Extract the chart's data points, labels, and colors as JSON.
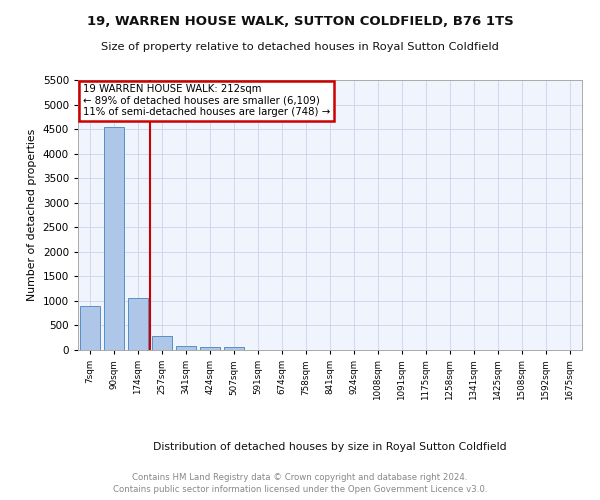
{
  "title1": "19, WARREN HOUSE WALK, SUTTON COLDFIELD, B76 1TS",
  "title2": "Size of property relative to detached houses in Royal Sutton Coldfield",
  "xlabel": "Distribution of detached houses by size in Royal Sutton Coldfield",
  "ylabel": "Number of detached properties",
  "annotation_line1": "19 WARREN HOUSE WALK: 212sqm",
  "annotation_line2": "← 89% of detached houses are smaller (6,109)",
  "annotation_line3": "11% of semi-detached houses are larger (748) →",
  "bar_labels": [
    "7sqm",
    "90sqm",
    "174sqm",
    "257sqm",
    "341sqm",
    "424sqm",
    "507sqm",
    "591sqm",
    "674sqm",
    "758sqm",
    "841sqm",
    "924sqm",
    "1008sqm",
    "1091sqm",
    "1175sqm",
    "1258sqm",
    "1341sqm",
    "1425sqm",
    "1508sqm",
    "1592sqm",
    "1675sqm"
  ],
  "bar_values": [
    900,
    4550,
    1060,
    295,
    90,
    70,
    55,
    0,
    0,
    0,
    0,
    0,
    0,
    0,
    0,
    0,
    0,
    0,
    0,
    0,
    0
  ],
  "bar_color": "#aec6e8",
  "bar_edge_color": "#5a8fc2",
  "vline_x": 2,
  "vline_color": "#cc0000",
  "ylim": [
    0,
    5500
  ],
  "yticks": [
    0,
    500,
    1000,
    1500,
    2000,
    2500,
    3000,
    3500,
    4000,
    4500,
    5000,
    5500
  ],
  "annotation_box_color": "#cc0000",
  "footer_line1": "Contains HM Land Registry data © Crown copyright and database right 2024.",
  "footer_line2": "Contains public sector information licensed under the Open Government Licence v3.0.",
  "bg_color": "#f0f4fc",
  "grid_color": "#c8d4ec"
}
